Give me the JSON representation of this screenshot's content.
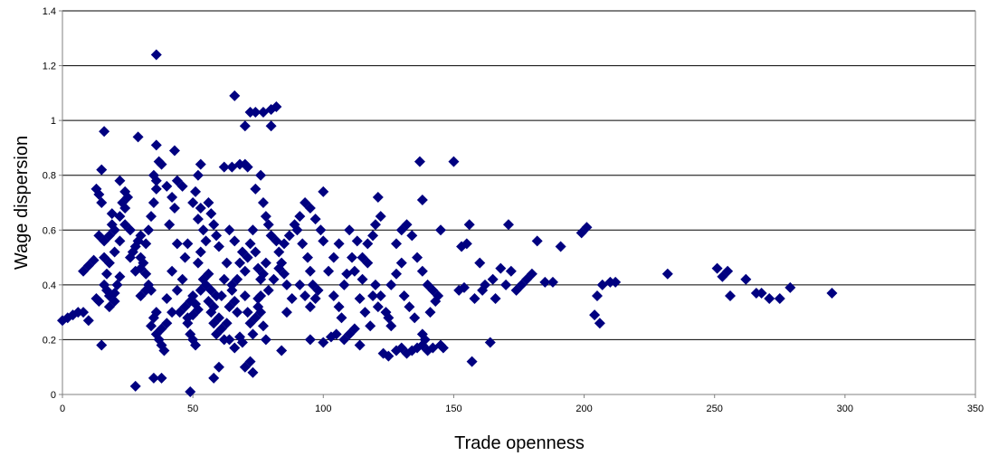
{
  "chart_data": {
    "type": "scatter",
    "title": "",
    "xlabel": "Trade openness",
    "ylabel": "Wage dispersion",
    "xlim": [
      0,
      350
    ],
    "ylim": [
      0,
      1.4
    ],
    "xticks": [
      0,
      50,
      100,
      150,
      200,
      250,
      300,
      350
    ],
    "yticks": [
      0,
      0.2,
      0.4,
      0.6,
      0.8,
      1,
      1.2,
      1.4
    ],
    "grid": "horizontal",
    "legend": "none",
    "marker": "diamond",
    "colors": {
      "marker": "#000080",
      "grid": "#000000",
      "axis": "#808080"
    },
    "points": [
      [
        0,
        0.27
      ],
      [
        2,
        0.28
      ],
      [
        4,
        0.29
      ],
      [
        6,
        0.3
      ],
      [
        8,
        0.3
      ],
      [
        10,
        0.27
      ],
      [
        8,
        0.45
      ],
      [
        10,
        0.47
      ],
      [
        12,
        0.49
      ],
      [
        13,
        0.75
      ],
      [
        14,
        0.73
      ],
      [
        15,
        0.7
      ],
      [
        14,
        0.58
      ],
      [
        16,
        0.56
      ],
      [
        16,
        0.96
      ],
      [
        15,
        0.82
      ],
      [
        15,
        0.18
      ],
      [
        13,
        0.35
      ],
      [
        14,
        0.34
      ],
      [
        16,
        0.4
      ],
      [
        17,
        0.38
      ],
      [
        18,
        0.36
      ],
      [
        18,
        0.32
      ],
      [
        20,
        0.34
      ],
      [
        20,
        0.37
      ],
      [
        21,
        0.4
      ],
      [
        22,
        0.43
      ],
      [
        19,
        0.62
      ],
      [
        20,
        0.6
      ],
      [
        22,
        0.65
      ],
      [
        23,
        0.7
      ],
      [
        24,
        0.68
      ],
      [
        25,
        0.72
      ],
      [
        22,
        0.78
      ],
      [
        24,
        0.74
      ],
      [
        26,
        0.5
      ],
      [
        27,
        0.52
      ],
      [
        28,
        0.54
      ],
      [
        29,
        0.56
      ],
      [
        30,
        0.58
      ],
      [
        28,
        0.45
      ],
      [
        30,
        0.46
      ],
      [
        29,
        0.94
      ],
      [
        28,
        0.03
      ],
      [
        30,
        0.36
      ],
      [
        32,
        0.38
      ],
      [
        33,
        0.4
      ],
      [
        31,
        0.48
      ],
      [
        32,
        0.55
      ],
      [
        33,
        0.6
      ],
      [
        34,
        0.65
      ],
      [
        35,
        0.7
      ],
      [
        36,
        0.75
      ],
      [
        36,
        0.78
      ],
      [
        35,
        0.8
      ],
      [
        37,
        0.85
      ],
      [
        36,
        0.91
      ],
      [
        38,
        0.84
      ],
      [
        36,
        1.24
      ],
      [
        35,
        0.06
      ],
      [
        38,
        0.06
      ],
      [
        34,
        0.25
      ],
      [
        35,
        0.28
      ],
      [
        36,
        0.22
      ],
      [
        37,
        0.2
      ],
      [
        38,
        0.18
      ],
      [
        39,
        0.16
      ],
      [
        40,
        0.35
      ],
      [
        42,
        0.45
      ],
      [
        44,
        0.55
      ],
      [
        41,
        0.62
      ],
      [
        43,
        0.68
      ],
      [
        42,
        0.72
      ],
      [
        44,
        0.78
      ],
      [
        40,
        0.76
      ],
      [
        43,
        0.89
      ],
      [
        46,
        0.76
      ],
      [
        45,
        0.3
      ],
      [
        47,
        0.32
      ],
      [
        48,
        0.28
      ],
      [
        49,
        0.34
      ],
      [
        50,
        0.36
      ],
      [
        51,
        0.33
      ],
      [
        52,
        0.31
      ],
      [
        50,
        0.29
      ],
      [
        48,
        0.26
      ],
      [
        49,
        0.22
      ],
      [
        50,
        0.2
      ],
      [
        51,
        0.18
      ],
      [
        53,
        0.38
      ],
      [
        54,
        0.42
      ],
      [
        52,
        0.48
      ],
      [
        53,
        0.52
      ],
      [
        55,
        0.56
      ],
      [
        54,
        0.6
      ],
      [
        52,
        0.64
      ],
      [
        53,
        0.68
      ],
      [
        50,
        0.7
      ],
      [
        51,
        0.74
      ],
      [
        52,
        0.8
      ],
      [
        53,
        0.84
      ],
      [
        49,
        0.01
      ],
      [
        55,
        0.4
      ],
      [
        56,
        0.44
      ],
      [
        57,
        0.3
      ],
      [
        58,
        0.26
      ],
      [
        59,
        0.22
      ],
      [
        60,
        0.28
      ],
      [
        56,
        0.7
      ],
      [
        57,
        0.66
      ],
      [
        58,
        0.62
      ],
      [
        59,
        0.58
      ],
      [
        60,
        0.54
      ],
      [
        58,
        0.06
      ],
      [
        60,
        0.1
      ],
      [
        61,
        0.36
      ],
      [
        62,
        0.42
      ],
      [
        63,
        0.48
      ],
      [
        62,
        0.83
      ],
      [
        65,
        0.83
      ],
      [
        64,
        0.6
      ],
      [
        66,
        0.56
      ],
      [
        65,
        0.4
      ],
      [
        66,
        0.34
      ],
      [
        67,
        0.3
      ],
      [
        64,
        0.2
      ],
      [
        66,
        0.17
      ],
      [
        68,
        0.21
      ],
      [
        69,
        0.19
      ],
      [
        68,
        0.84
      ],
      [
        70,
        0.84
      ],
      [
        71,
        0.83
      ],
      [
        66,
        1.09
      ],
      [
        70,
        0.98
      ],
      [
        72,
        1.03
      ],
      [
        74,
        1.03
      ],
      [
        77,
        1.03
      ],
      [
        80,
        1.04
      ],
      [
        82,
        1.05
      ],
      [
        80,
        0.98
      ],
      [
        70,
        0.1
      ],
      [
        72,
        0.12
      ],
      [
        73,
        0.08
      ],
      [
        70,
        0.45
      ],
      [
        71,
        0.5
      ],
      [
        72,
        0.55
      ],
      [
        73,
        0.6
      ],
      [
        74,
        0.52
      ],
      [
        75,
        0.46
      ],
      [
        76,
        0.42
      ],
      [
        74,
        0.75
      ],
      [
        76,
        0.8
      ],
      [
        77,
        0.7
      ],
      [
        78,
        0.65
      ],
      [
        75,
        0.35
      ],
      [
        76,
        0.3
      ],
      [
        77,
        0.25
      ],
      [
        78,
        0.2
      ],
      [
        79,
        0.62
      ],
      [
        80,
        0.58
      ],
      [
        82,
        0.56
      ],
      [
        83,
        0.52
      ],
      [
        84,
        0.48
      ],
      [
        85,
        0.44
      ],
      [
        86,
        0.4
      ],
      [
        84,
        0.16
      ],
      [
        86,
        0.3
      ],
      [
        88,
        0.35
      ],
      [
        90,
        0.6
      ],
      [
        91,
        0.65
      ],
      [
        92,
        0.55
      ],
      [
        94,
        0.5
      ],
      [
        95,
        0.45
      ],
      [
        96,
        0.4
      ],
      [
        93,
        0.7
      ],
      [
        95,
        0.68
      ],
      [
        97,
        0.64
      ],
      [
        99,
        0.6
      ],
      [
        100,
        0.56
      ],
      [
        100,
        0.74
      ],
      [
        98,
        0.38
      ],
      [
        97,
        0.35
      ],
      [
        95,
        0.2
      ],
      [
        100,
        0.19
      ],
      [
        103,
        0.21
      ],
      [
        105,
        0.22
      ],
      [
        108,
        0.2
      ],
      [
        110,
        0.22
      ],
      [
        112,
        0.24
      ],
      [
        114,
        0.18
      ],
      [
        102,
        0.45
      ],
      [
        104,
        0.5
      ],
      [
        106,
        0.55
      ],
      [
        108,
        0.4
      ],
      [
        110,
        0.6
      ],
      [
        112,
        0.45
      ],
      [
        114,
        0.35
      ],
      [
        116,
        0.3
      ],
      [
        118,
        0.25
      ],
      [
        115,
        0.5
      ],
      [
        117,
        0.55
      ],
      [
        119,
        0.58
      ],
      [
        120,
        0.62
      ],
      [
        121,
        0.72
      ],
      [
        122,
        0.65
      ],
      [
        120,
        0.4
      ],
      [
        122,
        0.36
      ],
      [
        124,
        0.3
      ],
      [
        125,
        0.28
      ],
      [
        126,
        0.25
      ],
      [
        123,
        0.15
      ],
      [
        125,
        0.14
      ],
      [
        128,
        0.16
      ],
      [
        130,
        0.17
      ],
      [
        132,
        0.15
      ],
      [
        134,
        0.16
      ],
      [
        136,
        0.17
      ],
      [
        138,
        0.18
      ],
      [
        140,
        0.16
      ],
      [
        142,
        0.17
      ],
      [
        145,
        0.18
      ],
      [
        146,
        0.17
      ],
      [
        128,
        0.55
      ],
      [
        130,
        0.6
      ],
      [
        132,
        0.62
      ],
      [
        134,
        0.58
      ],
      [
        136,
        0.5
      ],
      [
        138,
        0.45
      ],
      [
        140,
        0.4
      ],
      [
        142,
        0.38
      ],
      [
        144,
        0.36
      ],
      [
        145,
        0.6
      ],
      [
        137,
        0.85
      ],
      [
        138,
        0.71
      ],
      [
        150,
        0.85
      ],
      [
        152,
        0.38
      ],
      [
        153,
        0.54
      ],
      [
        154,
        0.39
      ],
      [
        155,
        0.55
      ],
      [
        156,
        0.62
      ],
      [
        157,
        0.12
      ],
      [
        158,
        0.35
      ],
      [
        160,
        0.48
      ],
      [
        161,
        0.38
      ],
      [
        162,
        0.4
      ],
      [
        164,
        0.19
      ],
      [
        165,
        0.42
      ],
      [
        166,
        0.35
      ],
      [
        168,
        0.46
      ],
      [
        170,
        0.4
      ],
      [
        171,
        0.62
      ],
      [
        172,
        0.45
      ],
      [
        174,
        0.38
      ],
      [
        176,
        0.4
      ],
      [
        178,
        0.42
      ],
      [
        180,
        0.44
      ],
      [
        182,
        0.56
      ],
      [
        185,
        0.41
      ],
      [
        188,
        0.41
      ],
      [
        191,
        0.54
      ],
      [
        199,
        0.59
      ],
      [
        201,
        0.61
      ],
      [
        204,
        0.29
      ],
      [
        205,
        0.36
      ],
      [
        206,
        0.26
      ],
      [
        207,
        0.4
      ],
      [
        210,
        0.41
      ],
      [
        212,
        0.41
      ],
      [
        232,
        0.44
      ],
      [
        251,
        0.46
      ],
      [
        253,
        0.43
      ],
      [
        255,
        0.45
      ],
      [
        256,
        0.36
      ],
      [
        262,
        0.42
      ],
      [
        266,
        0.37
      ],
      [
        268,
        0.37
      ],
      [
        271,
        0.35
      ],
      [
        275,
        0.35
      ],
      [
        279,
        0.39
      ],
      [
        295,
        0.37
      ],
      [
        44,
        0.38
      ],
      [
        46,
        0.42
      ],
      [
        47,
        0.5
      ],
      [
        48,
        0.55
      ],
      [
        42,
        0.3
      ],
      [
        40,
        0.26
      ],
      [
        38,
        0.24
      ],
      [
        36,
        0.3
      ],
      [
        34,
        0.38
      ],
      [
        32,
        0.44
      ],
      [
        30,
        0.5
      ],
      [
        26,
        0.6
      ],
      [
        24,
        0.62
      ],
      [
        22,
        0.56
      ],
      [
        20,
        0.52
      ],
      [
        18,
        0.48
      ],
      [
        17,
        0.44
      ],
      [
        16,
        0.5
      ],
      [
        18,
        0.58
      ],
      [
        19,
        0.66
      ],
      [
        56,
        0.34
      ],
      [
        57,
        0.38
      ],
      [
        58,
        0.32
      ],
      [
        59,
        0.36
      ],
      [
        61,
        0.24
      ],
      [
        62,
        0.2
      ],
      [
        63,
        0.26
      ],
      [
        64,
        0.32
      ],
      [
        65,
        0.38
      ],
      [
        67,
        0.42
      ],
      [
        68,
        0.48
      ],
      [
        69,
        0.52
      ],
      [
        70,
        0.36
      ],
      [
        71,
        0.3
      ],
      [
        72,
        0.26
      ],
      [
        73,
        0.22
      ],
      [
        74,
        0.28
      ],
      [
        75,
        0.32
      ],
      [
        76,
        0.36
      ],
      [
        77,
        0.44
      ],
      [
        78,
        0.48
      ],
      [
        79,
        0.38
      ],
      [
        81,
        0.42
      ],
      [
        83,
        0.46
      ],
      [
        85,
        0.55
      ],
      [
        87,
        0.58
      ],
      [
        89,
        0.62
      ],
      [
        91,
        0.4
      ],
      [
        93,
        0.36
      ],
      [
        95,
        0.32
      ],
      [
        104,
        0.36
      ],
      [
        106,
        0.32
      ],
      [
        107,
        0.28
      ],
      [
        109,
        0.44
      ],
      [
        111,
        0.5
      ],
      [
        113,
        0.56
      ],
      [
        115,
        0.42
      ],
      [
        117,
        0.48
      ],
      [
        119,
        0.36
      ],
      [
        121,
        0.32
      ],
      [
        126,
        0.4
      ],
      [
        128,
        0.44
      ],
      [
        130,
        0.48
      ],
      [
        131,
        0.36
      ],
      [
        133,
        0.32
      ],
      [
        135,
        0.28
      ],
      [
        138,
        0.22
      ],
      [
        139,
        0.2
      ],
      [
        141,
        0.3
      ],
      [
        143,
        0.34
      ]
    ]
  }
}
